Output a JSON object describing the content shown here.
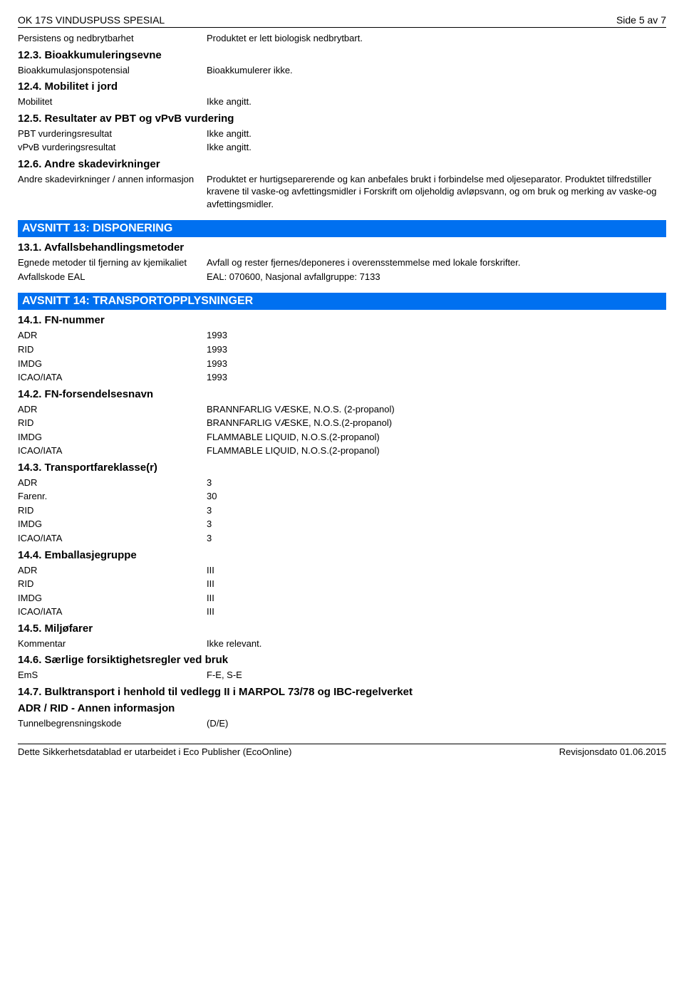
{
  "header": {
    "title": "OK 17S VINDUSPUSS SPESIAL",
    "page": "Side 5 av 7"
  },
  "s12": {
    "persistence": {
      "label": "Persistens og nedbrytbarhet",
      "value": "Produktet er lett biologisk nedbrytbart."
    },
    "h12_3": "12.3. Bioakkumuleringsevne",
    "bioacc": {
      "label": "Bioakkumulasjonspotensial",
      "value": "Bioakkumulerer ikke."
    },
    "h12_4": "12.4. Mobilitet i jord",
    "mobility": {
      "label": "Mobilitet",
      "value": "Ikke angitt."
    },
    "h12_5": "12.5. Resultater av PBT og vPvB vurdering",
    "pbt": {
      "label": "PBT vurderingsresultat",
      "value": "Ikke angitt."
    },
    "vpvb": {
      "label": "vPvB vurderingsresultat",
      "value": "Ikke angitt."
    },
    "h12_6": "12.6. Andre skadevirkninger",
    "other": {
      "label": "Andre skadevirkninger / annen informasjon",
      "value": "Produktet er hurtigseparerende og kan anbefales brukt i forbindelse med oljeseparator. Produktet tilfredstiller kravene til vaske-og avfettingsmidler i Forskrift om oljeholdig avløpsvann, og om bruk og merking av vaske-og avfettingsmidler."
    }
  },
  "s13": {
    "title": "AVSNITT 13: DISPONERING",
    "h13_1": "13.1. Avfallsbehandlingsmetoder",
    "method": {
      "label": "Egnede metoder til fjerning av kjemikaliet",
      "value": "Avfall og rester fjernes/deponeres i overensstemmelse med lokale forskrifter."
    },
    "eal": {
      "label": "Avfallskode EAL",
      "value": "EAL: 070600,   Nasjonal avfallgruppe: 7133"
    }
  },
  "s14": {
    "title": "AVSNITT 14: TRANSPORTOPPLYSNINGER",
    "h14_1": "14.1. FN-nummer",
    "fn_adr": {
      "label": "ADR",
      "value": "1993"
    },
    "fn_rid": {
      "label": "RID",
      "value": "1993"
    },
    "fn_imdg": {
      "label": "IMDG",
      "value": "1993"
    },
    "fn_icao": {
      "label": "ICAO/IATA",
      "value": "1993"
    },
    "h14_2": "14.2. FN-forsendelsesnavn",
    "name_adr": {
      "label": "ADR",
      "value": "BRANNFARLIG VÆSKE, N.O.S. (2-propanol)"
    },
    "name_rid": {
      "label": "RID",
      "value": "BRANNFARLIG VÆSKE, N.O.S.(2-propanol)"
    },
    "name_imdg": {
      "label": "IMDG",
      "value": "FLAMMABLE LIQUID, N.O.S.(2-propanol)"
    },
    "name_icao": {
      "label": "ICAO/IATA",
      "value": "FLAMMABLE LIQUID, N.O.S.(2-propanol)"
    },
    "h14_3": "14.3. Transportfareklasse(r)",
    "class_adr": {
      "label": "ADR",
      "value": "3"
    },
    "class_farenr": {
      "label": "Farenr.",
      "value": "30"
    },
    "class_rid": {
      "label": "RID",
      "value": "3"
    },
    "class_imdg": {
      "label": "IMDG",
      "value": "3"
    },
    "class_icao": {
      "label": "ICAO/IATA",
      "value": "3"
    },
    "h14_4": "14.4. Emballasjegruppe",
    "pg_adr": {
      "label": "ADR",
      "value": "III"
    },
    "pg_rid": {
      "label": "RID",
      "value": "III"
    },
    "pg_imdg": {
      "label": "IMDG",
      "value": "III"
    },
    "pg_icao": {
      "label": "ICAO/IATA",
      "value": "III"
    },
    "h14_5": "14.5. Miljøfarer",
    "env": {
      "label": "Kommentar",
      "value": "Ikke relevant."
    },
    "h14_6": "14.6. Særlige forsiktighetsregler ved bruk",
    "ems": {
      "label": "EmS",
      "value": "F-E, S-E"
    },
    "h14_7": "14.7. Bulktransport i henhold til vedlegg II i MARPOL 73/78 og IBC-regelverket",
    "h_adr_rid": "ADR / RID - Annen informasjon",
    "tunnel": {
      "label": "Tunnelbegrensningskode",
      "value": "(D/E)"
    }
  },
  "footer": {
    "left": "Dette Sikkerhetsdatablad er utarbeidet i Eco Publisher (EcoOnline)",
    "right": "Revisjonsdato 01.06.2015"
  }
}
